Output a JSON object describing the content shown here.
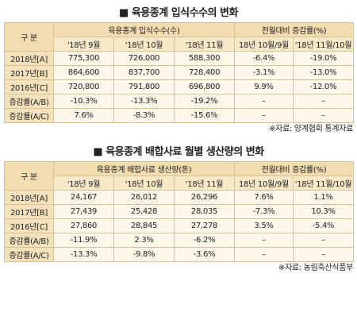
{
  "tables": [
    {
      "title": "■ 육용종계 입식수수의 변화",
      "header": {
        "row_label": "구 분",
        "group1": "육용종계 입식수수(수)",
        "group2": "전월대비 증감률(%)",
        "columns": [
          "'18년 9월",
          "'18년 10월",
          "'18년 11월",
          "18년 10월/9월",
          "'18년 11월/10월"
        ]
      },
      "rows": [
        {
          "label": "2018년[A]",
          "cells": [
            "775,300",
            "726,000",
            "588,300",
            "-6.4%",
            "-19.0%"
          ]
        },
        {
          "label": "2017년[B]",
          "cells": [
            "864,600",
            "837,700",
            "728,400",
            "-3.1%",
            "-13.0%"
          ]
        },
        {
          "label": "2016년[C]",
          "cells": [
            "720,800",
            "791,800",
            "696,800",
            "9.9%",
            "-12.0%"
          ]
        },
        {
          "label": "증감률(A/B)",
          "cells": [
            "-10.3%",
            "-13.3%",
            "-19.2%",
            "–",
            "–"
          ]
        },
        {
          "label": "증감률(A/C)",
          "cells": [
            "7.6%",
            "-8.3%",
            "-15.6%",
            "–",
            "–"
          ]
        }
      ],
      "source": "※자료: 양계협회 통계자료"
    },
    {
      "title": "■ 육용종계 배합사료 월별 생산량의 변화",
      "header": {
        "row_label": "구 분",
        "group1": "육용종계 배합사료 생산량(톤)",
        "group2": "전월대비 증감률(%)",
        "columns": [
          "'18년 9월",
          "'18년 10월",
          "'18년 11월",
          "18년 10월/9월",
          "'18년 11월/10월"
        ]
      },
      "rows": [
        {
          "label": "2018년[A]",
          "cells": [
            "24,167",
            "26,012",
            "26,296",
            "7.6%",
            "1.1%"
          ]
        },
        {
          "label": "2017년[B]",
          "cells": [
            "27,439",
            "25,428",
            "28,035",
            "-7.3%",
            "10.3%"
          ]
        },
        {
          "label": "2016년[C]",
          "cells": [
            "27,860",
            "28,845",
            "27,278",
            "3.5%",
            "-5.4%"
          ]
        },
        {
          "label": "증감률(A/B)",
          "cells": [
            "-11.9%",
            "2.3%",
            "-6.2%",
            "–",
            "–"
          ]
        },
        {
          "label": "증감률(A/C)",
          "cells": [
            "-13.3%",
            "-9.8%",
            "-3.6%",
            "–",
            "–"
          ]
        }
      ],
      "source": "※자료: 농림축산식품부"
    }
  ]
}
